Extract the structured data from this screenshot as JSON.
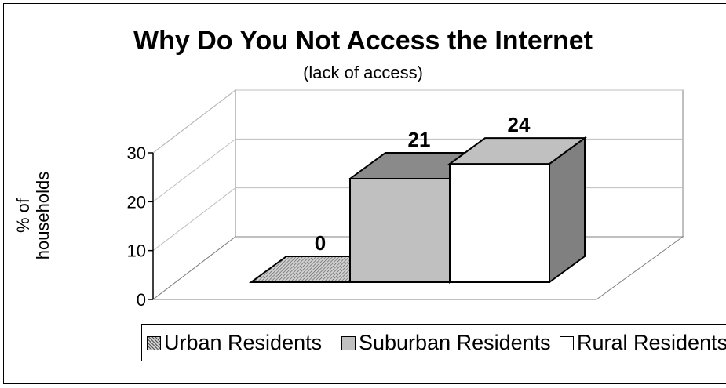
{
  "chart_data": {
    "type": "bar",
    "title": "Why Do You Not Access the Internet",
    "subtitle": "(lack of access)",
    "ylabel": "% of households",
    "ylabel_lines": [
      "% of",
      "households"
    ],
    "ylim": [
      0,
      30
    ],
    "yticks": [
      "0",
      "10",
      "20",
      "30"
    ],
    "categories": [
      "Urban Residents",
      "Suburban Residents",
      "Rural Residents"
    ],
    "values": [
      0,
      21,
      24
    ],
    "data_labels": [
      "0",
      "21",
      "24"
    ],
    "grid": true,
    "legend_position": "bottom",
    "colors": {
      "urban": "#9a9a9a",
      "suburban": "#c0c0c0",
      "rural": "#ffffff",
      "urban_pattern": "hatched",
      "gridline": "#bfbfbf"
    }
  }
}
